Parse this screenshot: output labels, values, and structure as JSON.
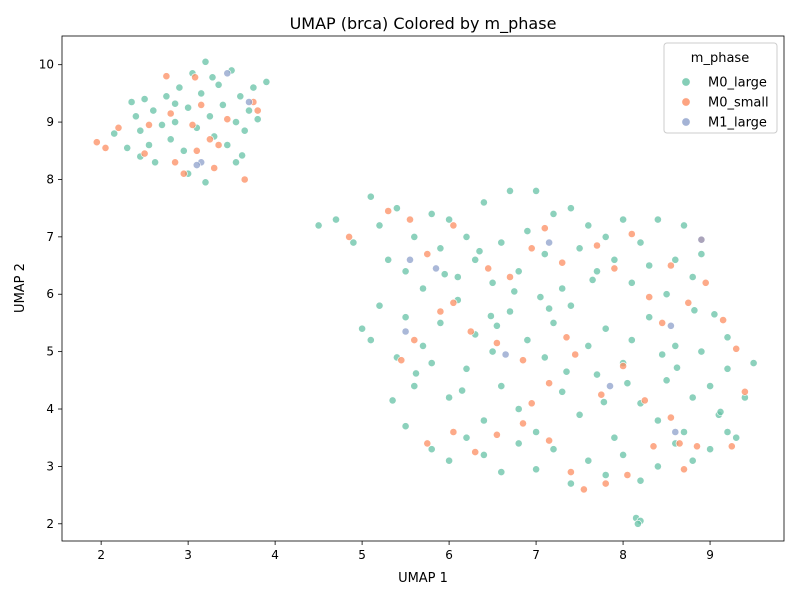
{
  "chart_data": {
    "type": "scatter",
    "title": "UMAP (brca) Colored by m_phase",
    "xlabel": "UMAP 1",
    "ylabel": "UMAP 2",
    "xlim": [
      1.55,
      9.85
    ],
    "ylim": [
      1.7,
      10.5
    ],
    "xticks": [
      2,
      3,
      4,
      5,
      6,
      7,
      8,
      9
    ],
    "yticks": [
      2,
      3,
      4,
      5,
      6,
      7,
      8,
      9,
      10
    ],
    "grid": false,
    "legend": {
      "title": "m_phase",
      "placement": "top-right",
      "entries": [
        "M0_large",
        "M0_small",
        "M1_large"
      ]
    },
    "series": [
      {
        "name": "M0_large",
        "color": "#66c2a5",
        "points": [
          [
            2.15,
            8.8
          ],
          [
            2.3,
            8.55
          ],
          [
            2.35,
            9.35
          ],
          [
            2.4,
            9.1
          ],
          [
            2.45,
            8.85
          ],
          [
            2.5,
            9.4
          ],
          [
            2.55,
            8.6
          ],
          [
            2.6,
            9.2
          ],
          [
            2.62,
            8.3
          ],
          [
            2.7,
            8.95
          ],
          [
            2.75,
            9.45
          ],
          [
            2.8,
            8.7
          ],
          [
            2.85,
            9.0
          ],
          [
            2.9,
            9.6
          ],
          [
            2.95,
            8.5
          ],
          [
            3.0,
            9.25
          ],
          [
            3.05,
            9.85
          ],
          [
            3.1,
            8.9
          ],
          [
            3.15,
            9.5
          ],
          [
            3.2,
            10.05
          ],
          [
            3.25,
            9.1
          ],
          [
            3.3,
            8.75
          ],
          [
            3.35,
            9.65
          ],
          [
            3.4,
            9.3
          ],
          [
            3.45,
            8.6
          ],
          [
            3.5,
            9.9
          ],
          [
            3.55,
            9.0
          ],
          [
            3.6,
            9.45
          ],
          [
            3.65,
            8.85
          ],
          [
            3.7,
            9.2
          ],
          [
            3.75,
            9.6
          ],
          [
            3.8,
            9.05
          ],
          [
            3.9,
            9.7
          ],
          [
            3.2,
            7.95
          ],
          [
            3.0,
            8.1
          ],
          [
            2.45,
            8.4
          ],
          [
            3.55,
            8.3
          ],
          [
            3.28,
            9.78
          ],
          [
            2.85,
            9.32
          ],
          [
            3.62,
            8.42
          ],
          [
            4.5,
            7.2
          ],
          [
            4.7,
            7.3
          ],
          [
            4.9,
            6.9
          ],
          [
            5.1,
            7.7
          ],
          [
            5.2,
            7.2
          ],
          [
            5.3,
            6.6
          ],
          [
            5.4,
            7.5
          ],
          [
            5.5,
            6.4
          ],
          [
            5.6,
            7.0
          ],
          [
            5.7,
            6.1
          ],
          [
            5.8,
            7.4
          ],
          [
            5.9,
            6.8
          ],
          [
            6.0,
            7.3
          ],
          [
            6.1,
            6.3
          ],
          [
            6.2,
            7.0
          ],
          [
            6.3,
            6.6
          ],
          [
            6.4,
            7.6
          ],
          [
            6.5,
            6.2
          ],
          [
            6.6,
            6.9
          ],
          [
            6.7,
            7.8
          ],
          [
            6.8,
            6.4
          ],
          [
            6.9,
            7.1
          ],
          [
            7.0,
            7.8
          ],
          [
            7.1,
            6.7
          ],
          [
            7.2,
            7.4
          ],
          [
            7.3,
            6.1
          ],
          [
            7.4,
            7.5
          ],
          [
            7.5,
            6.8
          ],
          [
            7.6,
            7.2
          ],
          [
            7.7,
            6.4
          ],
          [
            7.8,
            7.0
          ],
          [
            7.9,
            6.6
          ],
          [
            8.0,
            7.3
          ],
          [
            8.1,
            6.2
          ],
          [
            8.2,
            6.9
          ],
          [
            8.3,
            6.5
          ],
          [
            8.4,
            7.3
          ],
          [
            8.5,
            6.0
          ],
          [
            8.6,
            6.6
          ],
          [
            8.7,
            7.2
          ],
          [
            8.8,
            6.3
          ],
          [
            8.9,
            6.7
          ],
          [
            5.0,
            5.4
          ],
          [
            5.1,
            5.2
          ],
          [
            5.2,
            5.8
          ],
          [
            5.4,
            4.9
          ],
          [
            5.5,
            5.6
          ],
          [
            5.6,
            4.4
          ],
          [
            5.7,
            5.1
          ],
          [
            5.8,
            4.8
          ],
          [
            5.9,
            5.5
          ],
          [
            6.0,
            4.2
          ],
          [
            6.1,
            5.9
          ],
          [
            6.2,
            4.7
          ],
          [
            6.3,
            5.3
          ],
          [
            6.4,
            3.8
          ],
          [
            6.5,
            5.0
          ],
          [
            6.6,
            4.4
          ],
          [
            6.7,
            5.7
          ],
          [
            6.8,
            4.0
          ],
          [
            6.9,
            5.2
          ],
          [
            7.0,
            3.6
          ],
          [
            7.1,
            4.9
          ],
          [
            7.2,
            5.5
          ],
          [
            7.3,
            4.3
          ],
          [
            7.4,
            5.8
          ],
          [
            7.5,
            3.9
          ],
          [
            7.6,
            5.1
          ],
          [
            7.7,
            4.6
          ],
          [
            7.8,
            5.4
          ],
          [
            7.9,
            3.5
          ],
          [
            8.0,
            4.8
          ],
          [
            8.1,
            5.2
          ],
          [
            8.2,
            4.1
          ],
          [
            8.3,
            5.6
          ],
          [
            8.4,
            3.8
          ],
          [
            8.5,
            4.5
          ],
          [
            8.6,
            5.1
          ],
          [
            8.7,
            3.6
          ],
          [
            8.8,
            4.2
          ],
          [
            8.9,
            5.0
          ],
          [
            9.0,
            4.4
          ],
          [
            9.1,
            3.9
          ],
          [
            9.2,
            4.7
          ],
          [
            9.3,
            3.5
          ],
          [
            9.4,
            4.2
          ],
          [
            9.5,
            4.8
          ],
          [
            5.5,
            3.7
          ],
          [
            5.8,
            3.3
          ],
          [
            6.0,
            3.1
          ],
          [
            6.2,
            3.5
          ],
          [
            6.4,
            3.2
          ],
          [
            6.6,
            2.9
          ],
          [
            6.8,
            3.4
          ],
          [
            7.0,
            2.95
          ],
          [
            7.2,
            3.3
          ],
          [
            7.4,
            2.7
          ],
          [
            7.6,
            3.1
          ],
          [
            7.8,
            2.85
          ],
          [
            8.0,
            3.2
          ],
          [
            8.2,
            2.75
          ],
          [
            8.4,
            3.0
          ],
          [
            8.6,
            3.4
          ],
          [
            8.8,
            3.1
          ],
          [
            9.0,
            3.3
          ],
          [
            9.2,
            3.6
          ],
          [
            8.15,
            2.1
          ],
          [
            8.2,
            2.05
          ],
          [
            8.17,
            2.0
          ],
          [
            6.75,
            6.05
          ],
          [
            7.05,
            5.95
          ],
          [
            7.15,
            5.75
          ],
          [
            6.55,
            5.45
          ],
          [
            7.35,
            4.65
          ],
          [
            7.65,
            6.25
          ],
          [
            5.95,
            6.35
          ],
          [
            6.35,
            6.75
          ],
          [
            8.45,
            4.95
          ],
          [
            8.05,
            4.45
          ],
          [
            9.05,
            5.65
          ],
          [
            9.2,
            5.25
          ],
          [
            5.35,
            4.15
          ],
          [
            5.62,
            4.62
          ],
          [
            6.15,
            4.32
          ],
          [
            6.48,
            5.62
          ],
          [
            7.78,
            4.12
          ],
          [
            8.62,
            4.72
          ],
          [
            8.82,
            5.72
          ],
          [
            9.12,
            3.95
          ]
        ]
      },
      {
        "name": "M0_small",
        "color": "#fc8d62",
        "points": [
          [
            1.95,
            8.65
          ],
          [
            2.05,
            8.55
          ],
          [
            2.2,
            8.9
          ],
          [
            2.5,
            8.45
          ],
          [
            2.55,
            8.95
          ],
          [
            2.75,
            9.8
          ],
          [
            2.8,
            9.15
          ],
          [
            2.85,
            8.3
          ],
          [
            2.95,
            8.1
          ],
          [
            3.05,
            8.95
          ],
          [
            3.1,
            8.5
          ],
          [
            3.15,
            9.3
          ],
          [
            3.25,
            8.7
          ],
          [
            3.3,
            8.2
          ],
          [
            3.35,
            8.6
          ],
          [
            3.45,
            9.05
          ],
          [
            3.65,
            8.0
          ],
          [
            3.75,
            9.35
          ],
          [
            3.8,
            9.2
          ],
          [
            3.08,
            9.78
          ],
          [
            4.85,
            7.0
          ],
          [
            5.3,
            7.45
          ],
          [
            5.55,
            7.3
          ],
          [
            5.75,
            6.7
          ],
          [
            6.05,
            7.2
          ],
          [
            6.45,
            6.45
          ],
          [
            6.7,
            6.3
          ],
          [
            6.95,
            6.8
          ],
          [
            7.1,
            7.15
          ],
          [
            7.3,
            6.55
          ],
          [
            7.7,
            6.85
          ],
          [
            7.9,
            6.45
          ],
          [
            8.1,
            7.05
          ],
          [
            8.3,
            5.95
          ],
          [
            8.55,
            6.5
          ],
          [
            8.9,
            6.95
          ],
          [
            8.95,
            6.2
          ],
          [
            5.6,
            5.2
          ],
          [
            5.9,
            5.7
          ],
          [
            6.05,
            5.85
          ],
          [
            6.25,
            5.35
          ],
          [
            6.55,
            5.15
          ],
          [
            6.85,
            4.85
          ],
          [
            7.15,
            4.45
          ],
          [
            7.45,
            4.95
          ],
          [
            7.75,
            4.25
          ],
          [
            8.0,
            4.75
          ],
          [
            8.25,
            4.15
          ],
          [
            8.45,
            5.5
          ],
          [
            8.75,
            5.85
          ],
          [
            9.15,
            5.55
          ],
          [
            9.3,
            5.05
          ],
          [
            9.4,
            4.3
          ],
          [
            9.25,
            3.35
          ],
          [
            5.75,
            3.4
          ],
          [
            6.05,
            3.6
          ],
          [
            6.3,
            3.25
          ],
          [
            6.55,
            3.55
          ],
          [
            6.85,
            3.75
          ],
          [
            7.15,
            3.45
          ],
          [
            7.4,
            2.9
          ],
          [
            7.55,
            2.6
          ],
          [
            7.8,
            2.7
          ],
          [
            8.05,
            2.85
          ],
          [
            8.35,
            3.35
          ],
          [
            8.55,
            3.85
          ],
          [
            8.7,
            2.95
          ],
          [
            7.35,
            5.25
          ],
          [
            6.95,
            4.1
          ],
          [
            5.45,
            4.85
          ],
          [
            8.85,
            3.35
          ],
          [
            8.65,
            3.4
          ]
        ]
      },
      {
        "name": "M1_large",
        "color": "#8da0cb",
        "points": [
          [
            3.15,
            8.3
          ],
          [
            3.45,
            9.85
          ],
          [
            3.7,
            9.35
          ],
          [
            3.1,
            8.25
          ],
          [
            5.85,
            6.45
          ],
          [
            7.15,
            6.9
          ],
          [
            8.9,
            6.95
          ],
          [
            6.65,
            4.95
          ],
          [
            7.85,
            4.4
          ],
          [
            8.55,
            5.45
          ],
          [
            5.5,
            5.35
          ],
          [
            8.6,
            3.6
          ],
          [
            5.55,
            6.6
          ]
        ]
      }
    ]
  }
}
